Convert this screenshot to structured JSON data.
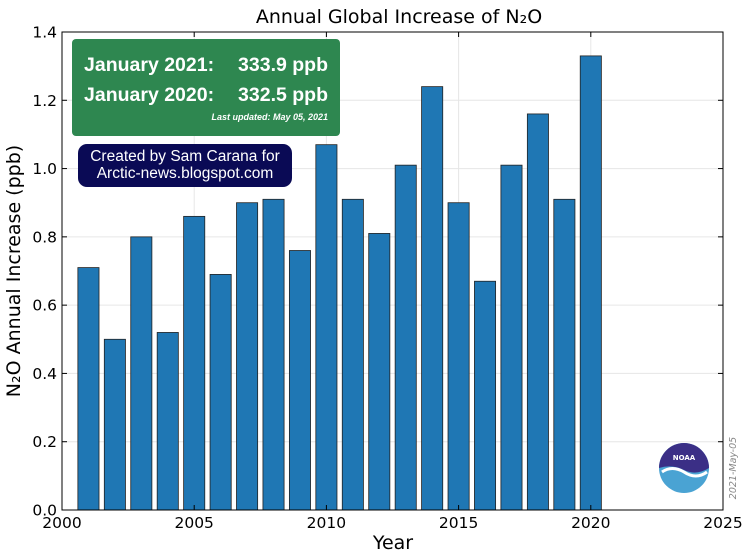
{
  "chart_data": {
    "type": "bar",
    "title": "Annual Global Increase of N₂O",
    "xlabel": "Year",
    "ylabel": "N₂O Annual Increase (ppb)",
    "xlim": [
      2000,
      2025
    ],
    "ylim": [
      0,
      1.4
    ],
    "x_ticks": [
      "2000",
      "2005",
      "2010",
      "2015",
      "2020",
      "2025"
    ],
    "y_ticks": [
      "0.0",
      "0.2",
      "0.4",
      "0.6",
      "0.8",
      "1.0",
      "1.2",
      "1.4"
    ],
    "grid": true,
    "bar_color": "#1f77b4",
    "categories": [
      2001,
      2002,
      2003,
      2004,
      2005,
      2006,
      2007,
      2008,
      2009,
      2010,
      2011,
      2012,
      2013,
      2014,
      2015,
      2016,
      2017,
      2018,
      2019,
      2020
    ],
    "values": [
      0.71,
      0.5,
      0.8,
      0.52,
      0.86,
      0.69,
      0.9,
      0.91,
      0.76,
      1.07,
      0.91,
      0.81,
      1.01,
      1.24,
      0.9,
      0.67,
      1.01,
      1.16,
      0.91,
      1.33
    ]
  },
  "info_box": {
    "row1_label": "January 2021:",
    "row1_value": "333.9 ppb",
    "row2_label": "January 2020:",
    "row2_value": "332.5 ppb",
    "updated": "Last updated: May 05, 2021",
    "background": "#2e8750"
  },
  "credit_box": {
    "line1": "Created by Sam Carana for",
    "line2": "Arctic-news.blogspot.com",
    "background": "#0a0a55"
  },
  "date_stamp": "2021-May-05",
  "logo": {
    "text": "NOAA",
    "icon": "noaa-logo-icon"
  }
}
